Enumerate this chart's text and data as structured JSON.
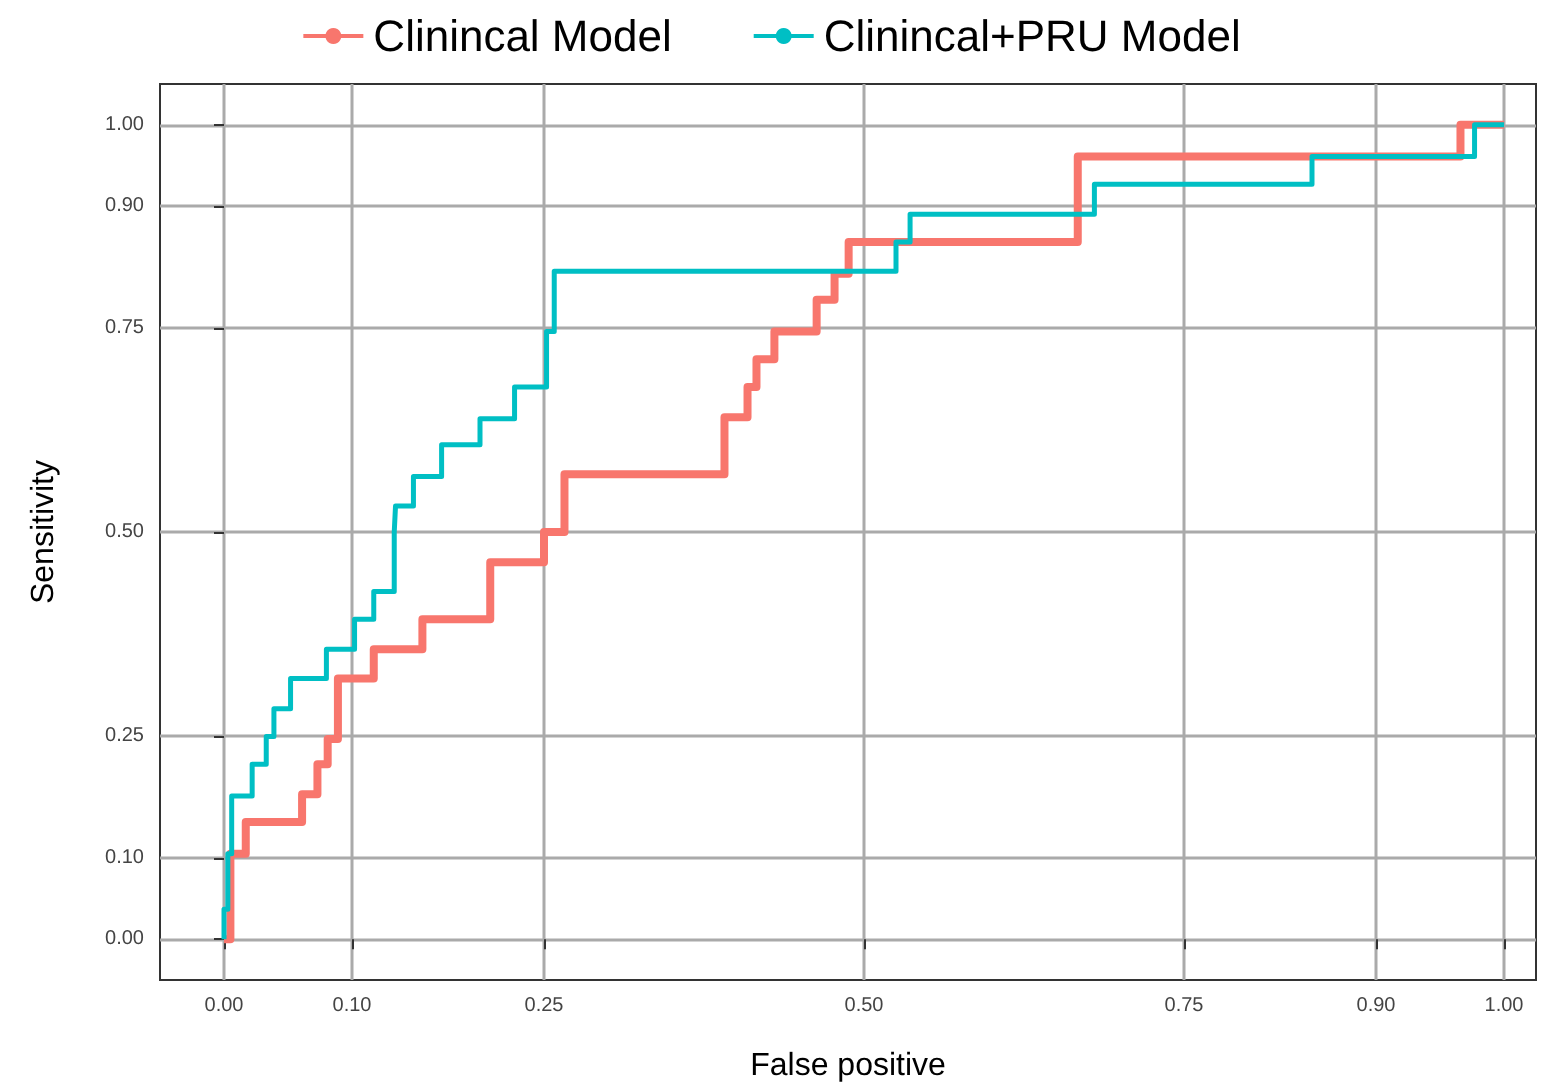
{
  "chart_data": {
    "type": "step",
    "xlabel": "False positive",
    "ylabel": "Sensitivity",
    "xlim": [
      -0.05,
      1.025
    ],
    "ylim": [
      -0.05,
      1.05
    ],
    "xticks": [
      {
        "value": 0,
        "label": "0.00"
      },
      {
        "value": 0.1,
        "label": "0.10"
      },
      {
        "value": 0.25,
        "label": "0.25"
      },
      {
        "value": 0.5,
        "label": "0.50"
      },
      {
        "value": 0.75,
        "label": "0.75"
      },
      {
        "value": 0.9,
        "label": "0.90"
      },
      {
        "value": 1,
        "label": "1.00"
      }
    ],
    "yticks": [
      {
        "value": 0,
        "label": "0.00"
      },
      {
        "value": 0.1,
        "label": "0.10"
      },
      {
        "value": 0.25,
        "label": "0.25"
      },
      {
        "value": 0.5,
        "label": "0.50"
      },
      {
        "value": 0.75,
        "label": "0.75"
      },
      {
        "value": 0.9,
        "label": "0.90"
      },
      {
        "value": 1,
        "label": "1.00"
      }
    ],
    "grid": true,
    "legend": "top",
    "series": [
      {
        "name": "Clinincal Model",
        "color": "#f8766d",
        "x": [
          0,
          0.005,
          0.017,
          0.061,
          0.073,
          0.081,
          0.089,
          0.117,
          0.155,
          0.208,
          0.25,
          0.266,
          0.391,
          0.409,
          0.416,
          0.43,
          0.463,
          0.477,
          0.488,
          0.667,
          0.966,
          1.0
        ],
        "values": [
          0,
          0.105,
          0.144,
          0.178,
          0.215,
          0.246,
          0.32,
          0.356,
          0.393,
          0.463,
          0.5,
          0.571,
          0.641,
          0.678,
          0.712,
          0.746,
          0.785,
          0.817,
          0.856,
          0.961,
          1.0,
          1.0
        ]
      },
      {
        "name": "Clinincal+PRU Model",
        "color": "#00bfc4",
        "x": [
          0,
          0,
          0.003,
          0.006,
          0.022,
          0.033,
          0.039,
          0.052,
          0.08,
          0.102,
          0.117,
          0.133,
          0.134,
          0.148,
          0.17,
          0.2,
          0.227,
          0.252,
          0.258,
          0.525,
          0.536,
          0.68,
          0.85,
          0.977,
          1.0
        ],
        "values": [
          0,
          0.037,
          0.105,
          0.176,
          0.215,
          0.249,
          0.283,
          0.32,
          0.356,
          0.393,
          0.427,
          0.5,
          0.532,
          0.568,
          0.607,
          0.639,
          0.678,
          0.746,
          0.82,
          0.856,
          0.89,
          0.927,
          0.961,
          1.0,
          1.0
        ]
      }
    ]
  }
}
